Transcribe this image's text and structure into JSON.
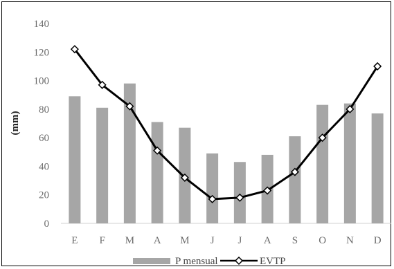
{
  "chart_data": {
    "type": "bar",
    "categories": [
      "E",
      "F",
      "M",
      "A",
      "M",
      "J",
      "J",
      "A",
      "S",
      "O",
      "N",
      "D"
    ],
    "series": [
      {
        "name": "P mensual",
        "type": "bar",
        "color": "#a6a6a6",
        "values": [
          89,
          81,
          98,
          71,
          67,
          49,
          43,
          48,
          61,
          83,
          84,
          77
        ]
      },
      {
        "name": "EVTP",
        "type": "line",
        "color": "#000000",
        "marker": "diamond",
        "values": [
          122,
          97,
          82,
          51,
          32,
          17,
          18,
          23,
          36,
          60,
          80,
          110
        ]
      }
    ],
    "ylabel": "(mm)",
    "ylim": [
      0,
      140
    ],
    "yticks": [
      "0",
      "20",
      "40",
      "60",
      "80",
      "100",
      "120",
      "140"
    ],
    "grid": false,
    "legend": "bottom"
  }
}
